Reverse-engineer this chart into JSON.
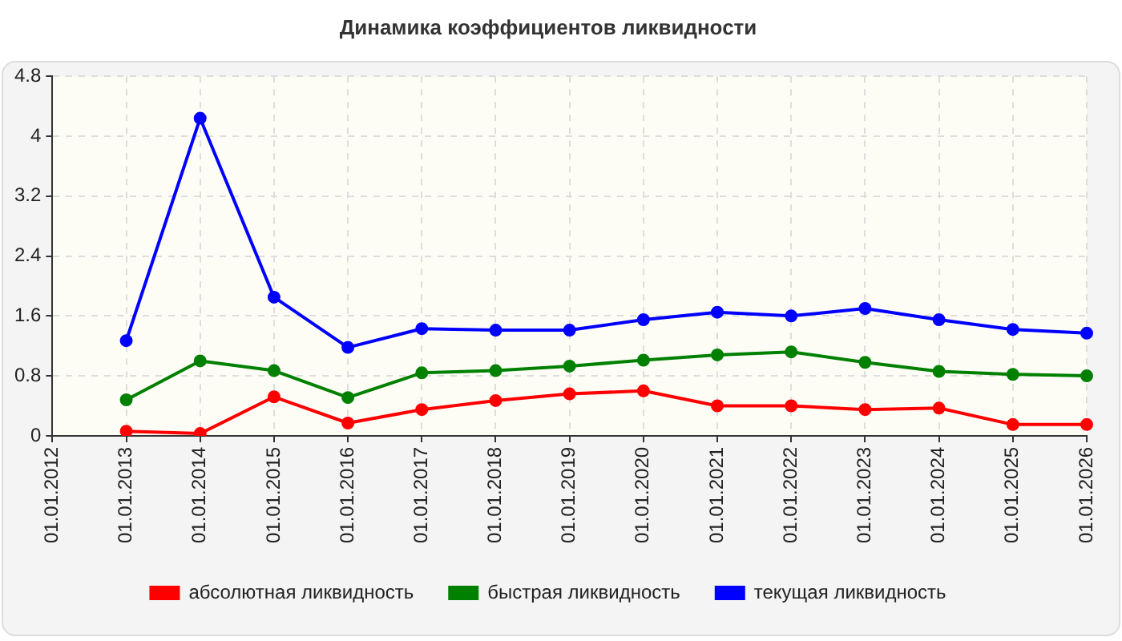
{
  "chart_data": {
    "type": "line",
    "title": "Динамика коэффициентов ликвидности",
    "categories": [
      "01.01.2012",
      "01.01.2013",
      "01.01.2014",
      "01.01.2015",
      "01.01.2016",
      "01.01.2017",
      "01.01.2018",
      "01.01.2019",
      "01.01.2020",
      "01.01.2021",
      "01.01.2022",
      "01.01.2023",
      "01.01.2024",
      "01.01.2025",
      "01.01.2026"
    ],
    "series": [
      {
        "name": "абсолютная ликвидность",
        "color": "#ff0000",
        "values": [
          null,
          0.06,
          0.03,
          0.52,
          0.17,
          0.35,
          0.47,
          0.56,
          0.6,
          0.4,
          0.4,
          0.35,
          0.37,
          0.15,
          0.15
        ]
      },
      {
        "name": "быстрая ликвидность",
        "color": "#008000",
        "values": [
          null,
          0.48,
          1.0,
          0.87,
          0.51,
          0.84,
          0.87,
          0.93,
          1.01,
          1.08,
          1.12,
          0.98,
          0.86,
          0.82,
          0.8
        ]
      },
      {
        "name": "текущая ликвидность",
        "color": "#0000ff",
        "values": [
          null,
          1.27,
          4.24,
          1.85,
          1.18,
          1.43,
          1.41,
          1.41,
          1.55,
          1.65,
          1.6,
          1.7,
          1.55,
          1.42,
          1.37
        ]
      }
    ],
    "ylim": [
      0,
      4.8
    ],
    "yticks": [
      0,
      0.8,
      1.6,
      2.4,
      3.2,
      4,
      4.8
    ],
    "grid": true,
    "legend": "bottom",
    "marker": "circle",
    "line_style": "solid"
  }
}
